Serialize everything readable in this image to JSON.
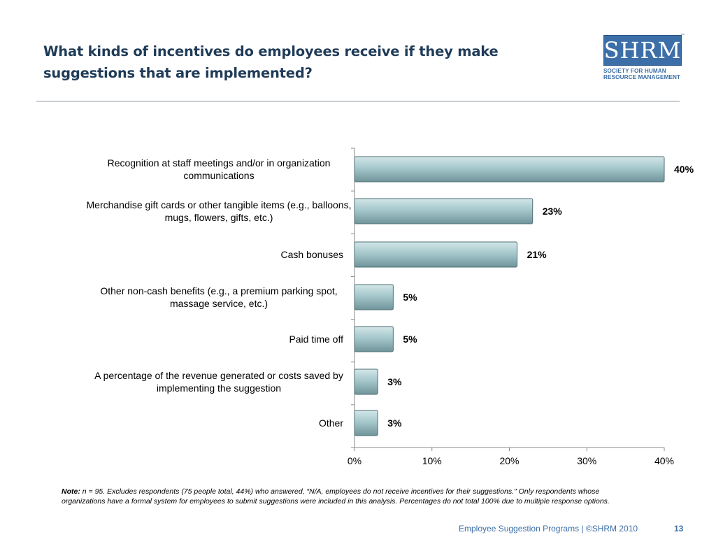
{
  "slide": {
    "title": "What kinds of incentives do employees receive if they make suggestions that are implemented?",
    "logo_text": "SHRM",
    "logo_subtitle_line1": "SOCIETY FOR HUMAN",
    "logo_subtitle_line2": "RESOURCE MANAGEMENT",
    "note_label": "Note:",
    "note_text": "n = 95. Excludes respondents (75 people total, 44%) who answered, “N/A, employees do not receive incentives for their suggestions.\" Only respondents whose organizations have a formal system for employees to submit suggestions were included in this analysis.  Percentages do not total 100% due to multiple response options.",
    "footer_text": "Employee Suggestion Programs | ©SHRM 2010",
    "page_number": "13"
  },
  "colors": {
    "title": "#1f3b57",
    "bar_fill": "#9fc4c8",
    "bar_stroke": "#4e6f74",
    "accent": "#3c6fa8"
  },
  "chart_data": {
    "type": "bar",
    "orientation": "horizontal",
    "categories": [
      [
        "Recognition at staff meetings and/or in organization",
        "communications"
      ],
      [
        "Merchandise gift cards or other tangible items (e.g., balloons,",
        "mugs, flowers, gifts, etc.)"
      ],
      [
        "Cash bonuses"
      ],
      [
        "Other non-cash benefits (e.g., a premium parking spot,",
        "massage service, etc.)"
      ],
      [
        "Paid time off"
      ],
      [
        "A percentage of the revenue generated or costs saved by",
        "implementing the suggestion"
      ],
      [
        "Other"
      ]
    ],
    "values": [
      40,
      23,
      21,
      5,
      5,
      3,
      3
    ],
    "value_labels": [
      "40%",
      "23%",
      "21%",
      "5%",
      "5%",
      "3%",
      "3%"
    ],
    "xlim": [
      0,
      40
    ],
    "xticks": [
      0,
      10,
      20,
      30,
      40
    ],
    "xtick_labels": [
      "0%",
      "10%",
      "20%",
      "30%",
      "40%"
    ],
    "grid": false,
    "legend": "none"
  }
}
